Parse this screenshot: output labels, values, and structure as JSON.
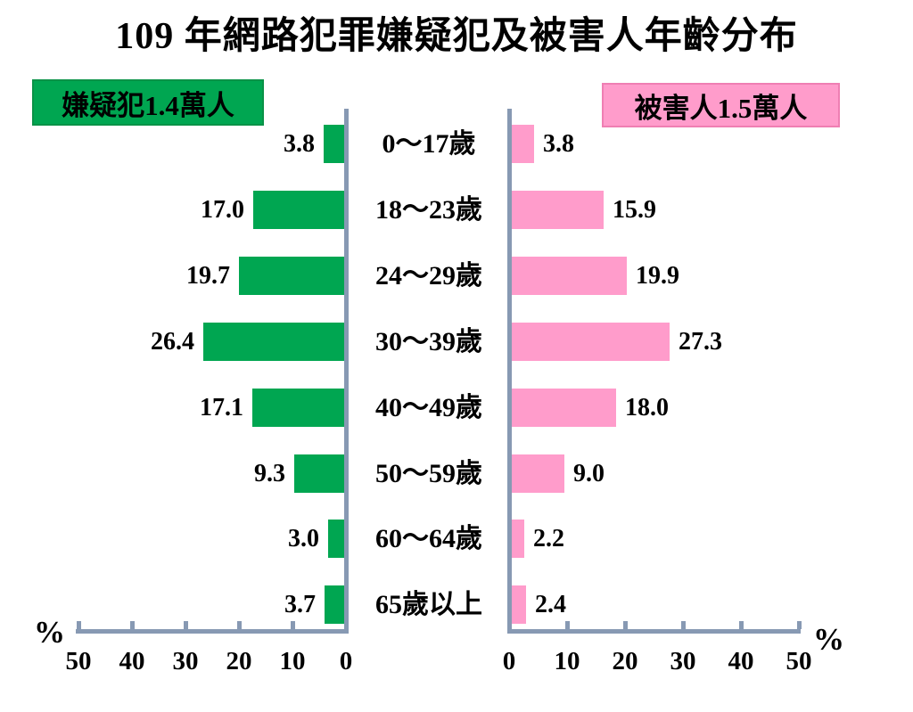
{
  "title": "109 年網路犯罪嫌疑犯及被害人年齡分布",
  "chart_data": {
    "type": "bar",
    "subtype": "population-pyramid",
    "title": "109 年網路犯罪嫌疑犯及被害人年齡分布",
    "unit": "%",
    "categories": [
      "0～17歲",
      "18～23歲",
      "24～29歲",
      "30～39歲",
      "40～49歲",
      "50～59歲",
      "60～64歲",
      "65歲以上"
    ],
    "series": [
      {
        "name": "嫌疑犯1.4萬人",
        "side": "left",
        "color": "#00a651",
        "values": [
          "3.8",
          "17.0",
          "19.7",
          "26.4",
          "17.1",
          "9.3",
          "3.0",
          "3.7"
        ]
      },
      {
        "name": "被害人1.5萬人",
        "side": "right",
        "color": "#ff9ccb",
        "values": [
          "3.8",
          "15.9",
          "19.9",
          "27.3",
          "18.0",
          "9.0",
          "2.2",
          "2.4"
        ]
      }
    ],
    "axis_tick_labels": [
      "0",
      "10",
      "20",
      "30",
      "40",
      "50"
    ],
    "xlim": [
      0,
      50
    ],
    "grid": false,
    "legend_position": "top"
  },
  "colors": {
    "suspect_green": "#00a651",
    "victim_pink": "#ff9ccb",
    "axis_gray_blue": "#8799b3"
  }
}
